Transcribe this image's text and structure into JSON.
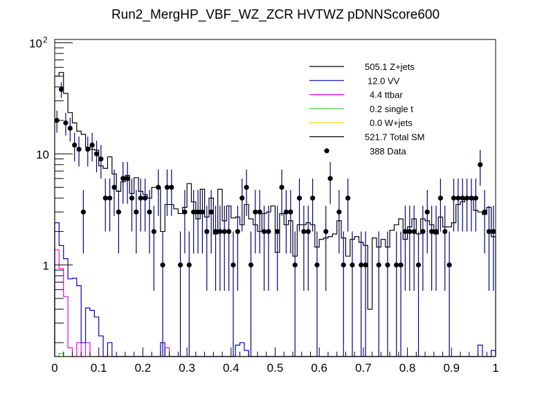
{
  "chart_data": {
    "type": "histogram",
    "title": "Run2_MergHP_VBF_WZ_ZCR HVTWZ  pDNNScore600",
    "xlabel": "",
    "ylabel": "",
    "xlim": [
      0,
      1
    ],
    "ylim": [
      0.15,
      107
    ],
    "yscale": "log",
    "grid": false,
    "legend_position": "top-right",
    "n_bins": 100,
    "x_ticks": [
      "0",
      "0.1",
      "0.2",
      "0.3",
      "0.4",
      "0.5",
      "0.6",
      "0.7",
      "0.8",
      "0.9",
      "1"
    ],
    "x_tick_values": [
      0,
      0.1,
      0.2,
      0.3,
      0.4,
      0.5,
      0.6,
      0.7,
      0.8,
      0.9,
      1
    ],
    "y_ticks": [
      {
        "value": 1,
        "label": "1"
      },
      {
        "value": 10,
        "label": "10"
      },
      {
        "value": 100,
        "label": "10",
        "sup": "2"
      }
    ],
    "legend": [
      {
        "label": "505.1 Z+jets",
        "color": "#000000",
        "style": "line"
      },
      {
        "label": "12.0 VV",
        "color": "#0000cc",
        "style": "line"
      },
      {
        "label": "4.4 ttbar",
        "color": "#ee00ee",
        "style": "line"
      },
      {
        "label": "0.2 single t",
        "color": "#44cc44",
        "style": "line"
      },
      {
        "label": "0.0 W+jets",
        "color": "#ffcc00",
        "style": "line"
      },
      {
        "label": "521.7 Total SM",
        "color": "#000000",
        "style": "line"
      },
      {
        "label": "388 Data",
        "color": "#000000",
        "style": "marker"
      }
    ],
    "series": [
      {
        "name": "Total SM",
        "color": "#000000",
        "values": [
          50,
          54,
          35,
          23.5,
          19,
          16,
          15,
          11.5,
          11,
          10.8,
          7.8,
          7.4,
          9.4,
          6.6,
          4.6,
          5.6,
          6.4,
          4.4,
          6.1,
          4.6,
          4.3,
          4.0,
          5.0,
          5.0,
          2.0,
          3.5,
          3.5,
          3.2,
          2.9,
          3.3,
          5.4,
          3.7,
          2.6,
          4.8,
          2.7,
          4.0,
          1.9,
          4.8,
          2.5,
          3.4,
          2.65,
          2.7,
          2.3,
          3.5,
          2.6,
          2.3,
          2.0,
          2.9,
          3.0,
          3.4,
          1.3,
          2.9,
          2.3,
          2.5,
          1.2,
          2.3,
          2.3,
          2.4,
          2.3,
          1.45,
          1.7,
          1.75,
          1.8,
          1.9,
          2.5,
          1.75,
          1.2,
          1.7,
          1.8,
          1.6,
          1.5,
          0.4,
          1.75,
          1.45,
          1.7,
          1.45,
          2.05,
          2.3,
          2.6,
          1.7,
          2.2,
          2.6,
          1.9,
          2.6,
          2.5,
          2.3,
          1.9,
          2.7,
          2.2,
          2.2,
          2.4,
          3.5,
          3.7,
          4.0,
          4.0,
          3.1,
          3.0,
          2.85,
          3.3,
          1.8
        ]
      },
      {
        "name": "VV",
        "color": "#0000cc",
        "values": [
          2.4,
          1.5,
          1.14,
          0.75,
          0.76,
          0.65,
          0.2,
          0.41,
          0.39,
          0.34,
          0.23,
          0,
          0.2,
          0,
          0,
          0,
          0,
          0,
          0,
          0,
          0,
          0,
          0,
          0,
          0.2,
          0,
          0,
          0,
          0,
          0,
          0,
          0,
          0,
          0,
          0,
          0,
          0,
          0,
          0,
          0,
          0,
          0.19,
          0.2,
          0.17,
          0,
          0,
          0,
          0,
          0,
          0,
          0,
          0,
          0,
          0,
          0,
          0,
          0,
          0,
          0,
          0,
          0,
          0,
          0,
          0,
          0,
          0,
          0,
          0,
          0,
          0,
          0,
          0,
          0,
          0,
          0,
          0,
          0,
          0,
          0,
          0,
          0,
          0,
          0,
          0,
          0,
          0,
          0,
          0,
          0,
          0,
          0,
          0,
          0,
          0,
          0,
          0,
          0.19,
          0,
          0,
          0.17
        ]
      },
      {
        "name": "ttbar",
        "color": "#ee00ee",
        "values": [
          1.37,
          0.93,
          0.52,
          0.18,
          0,
          0.2,
          0,
          0.2,
          0,
          0,
          0,
          0,
          0,
          0,
          0,
          0,
          0,
          0,
          0,
          0,
          0,
          0,
          0,
          0,
          0,
          0.18,
          0,
          0,
          0,
          0,
          0,
          0,
          0,
          0,
          0,
          0,
          0,
          0,
          0,
          0,
          0,
          0,
          0,
          0,
          0,
          0,
          0,
          0,
          0,
          0,
          0,
          0,
          0,
          0,
          0,
          0,
          0,
          0,
          0,
          0,
          0,
          0,
          0,
          0,
          0,
          0,
          0,
          0,
          0,
          0,
          0,
          0,
          0,
          0,
          0,
          0,
          0,
          0,
          0,
          0,
          0,
          0,
          0,
          0,
          0,
          0,
          0,
          0,
          0,
          0,
          0,
          0,
          0,
          0,
          0,
          0,
          0,
          0,
          0,
          0
        ]
      },
      {
        "name": "single t",
        "color": "#44cc44",
        "values": [
          0,
          0.16,
          0,
          0,
          0,
          0,
          0,
          0,
          0,
          0,
          0,
          0,
          0,
          0,
          0,
          0,
          0,
          0,
          0,
          0,
          0,
          0,
          0,
          0,
          0,
          0,
          0,
          0,
          0,
          0,
          0,
          0,
          0,
          0,
          0,
          0,
          0,
          0,
          0,
          0,
          0,
          0,
          0,
          0,
          0,
          0,
          0,
          0,
          0,
          0,
          0,
          0,
          0,
          0,
          0,
          0,
          0,
          0,
          0,
          0,
          0,
          0,
          0,
          0,
          0,
          0,
          0,
          0,
          0,
          0,
          0,
          0,
          0,
          0,
          0,
          0,
          0,
          0,
          0,
          0,
          0,
          0,
          0,
          0,
          0,
          0,
          0,
          0,
          0,
          0,
          0,
          0,
          0,
          0,
          0,
          0,
          0,
          0,
          0,
          0
        ]
      },
      {
        "name": "W+jets",
        "color": "#ffcc00",
        "values": [
          0,
          0,
          0,
          0,
          0,
          0,
          0,
          0,
          0,
          0,
          0,
          0,
          0,
          0,
          0,
          0,
          0,
          0,
          0,
          0,
          0,
          0,
          0,
          0,
          0,
          0,
          0,
          0,
          0,
          0,
          0,
          0,
          0,
          0,
          0,
          0,
          0,
          0,
          0,
          0,
          0,
          0,
          0,
          0,
          0,
          0,
          0,
          0,
          0,
          0,
          0,
          0,
          0,
          0,
          0,
          0,
          0,
          0,
          0,
          0,
          0,
          0,
          0,
          0,
          0,
          0,
          0,
          0,
          0,
          0,
          0,
          0,
          0,
          0,
          0,
          0,
          0,
          0,
          0,
          0,
          0,
          0,
          0,
          0,
          0,
          0,
          0,
          0,
          0,
          0,
          0,
          0,
          0,
          0,
          0,
          0,
          0,
          0,
          0,
          0
        ]
      }
    ],
    "data": {
      "name": "Data",
      "marker_color": "#000000",
      "error_color": "#000080",
      "values": [
        20,
        38,
        19,
        17,
        12,
        11,
        3,
        11,
        12,
        10,
        9,
        4,
        4,
        5,
        3,
        6,
        6,
        4,
        3,
        4,
        4,
        3,
        2,
        5,
        1,
        5,
        5,
        0,
        1,
        3,
        1,
        3,
        3,
        3,
        2,
        3,
        2,
        2,
        2,
        2,
        1,
        2,
        4,
        5,
        1,
        3,
        3,
        2,
        2,
        0,
        2,
        5,
        3,
        3,
        1,
        4,
        2,
        2,
        4,
        1,
        0,
        2,
        6,
        0,
        3,
        1,
        4,
        1,
        0,
        1,
        1,
        0,
        0,
        1,
        0,
        1,
        0,
        1,
        1,
        2,
        2,
        2,
        1,
        2,
        3,
        2,
        2,
        4,
        2,
        1,
        4,
        4,
        4,
        4,
        4,
        4,
        8,
        3,
        2,
        2
      ]
    }
  }
}
